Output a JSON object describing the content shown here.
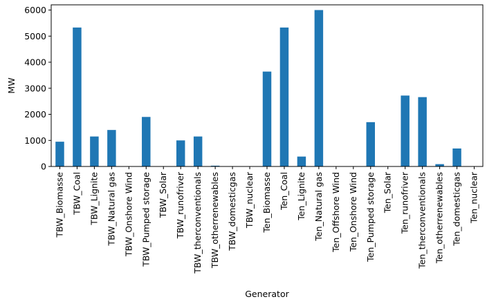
{
  "chart_data": {
    "type": "bar",
    "xlabel": "Generator",
    "ylabel": "MW",
    "ylim": [
      0,
      6200
    ],
    "yticks": [
      0,
      1000,
      2000,
      3000,
      4000,
      5000,
      6000
    ],
    "bar_color": "#1f77b4",
    "grid": false,
    "legend": "none",
    "categories": [
      "TBW_Biomasse",
      "TBW_Coal",
      "TBW_Lignite",
      "TBW_Natural gas",
      "TBW_Onshore Wind",
      "TBW_Pumped storage",
      "TBW_Solar",
      "TBW_runofriver",
      "TBW_therconventionals",
      "TBW_otherrenewables",
      "TBW_domesticgas",
      "TBW_nuclear",
      "Ten_Biomasse",
      "Ten_Coal",
      "Ten_Lignite",
      "Ten_Natural gas",
      "Ten_Offshore Wind",
      "Ten_Onshore Wind",
      "Ten_Pumped storage",
      "Ten_Solar",
      "Ten_runofriver",
      "Ten_therconventionals",
      "Ten_otherrenewables",
      "Ten_domesticgas",
      "Ten_nuclear"
    ],
    "values": [
      950,
      5330,
      1150,
      1400,
      0,
      1900,
      0,
      1000,
      1150,
      30,
      0,
      0,
      3640,
      5330,
      380,
      6000,
      0,
      0,
      1700,
      0,
      2720,
      2660,
      90,
      690,
      0
    ]
  }
}
